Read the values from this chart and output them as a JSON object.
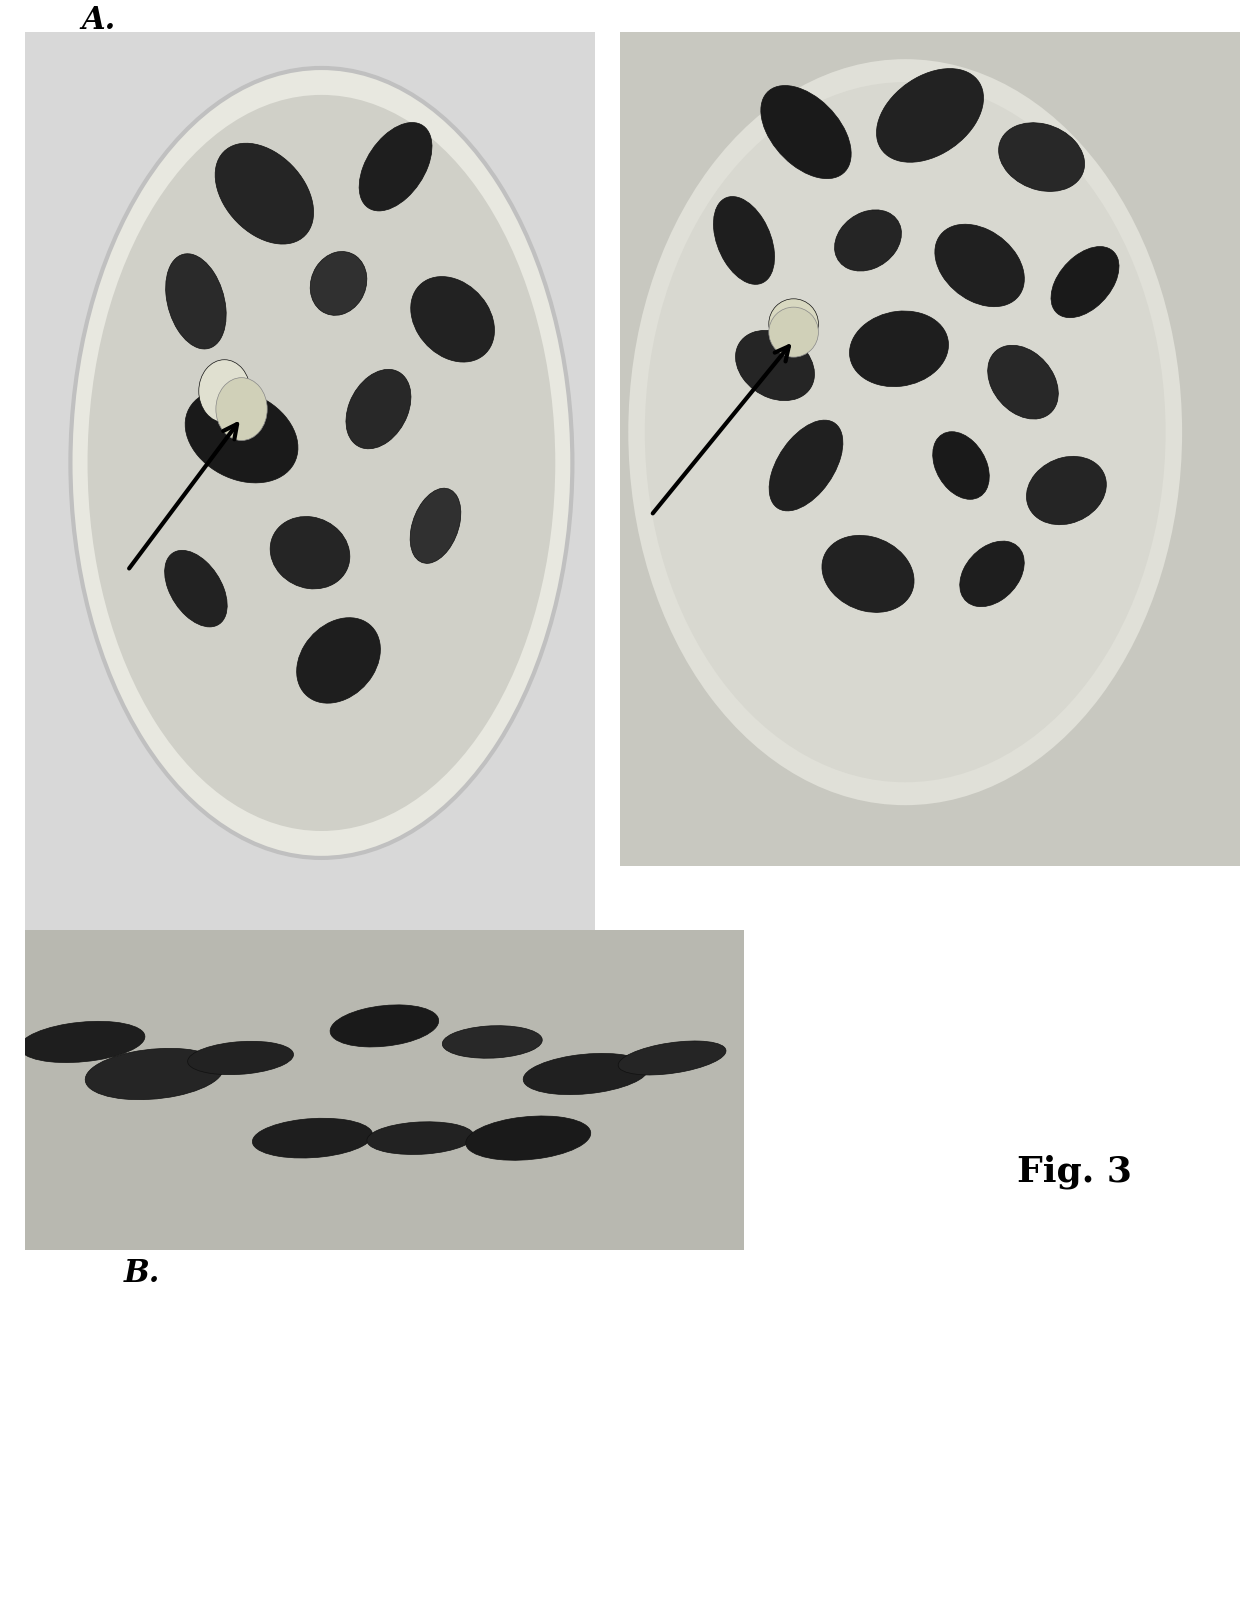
{
  "bg_color": "#f0f0f0",
  "white_bg": "#ffffff",
  "label_A": "A.",
  "label_B": "B.",
  "label_fig": "Fig. 3",
  "label_fontsize": 22,
  "fig_label_fontsize": 26,
  "petri_bg_color": "#c8c8c8",
  "petri_border_color": "#b0b0b0",
  "dish_interior_color": "#d8d8d8",
  "plant_dark_color": "#2a2a2a",
  "plant_med_color": "#4a4a4a",
  "rect_bg_color": "#b8b8b8"
}
